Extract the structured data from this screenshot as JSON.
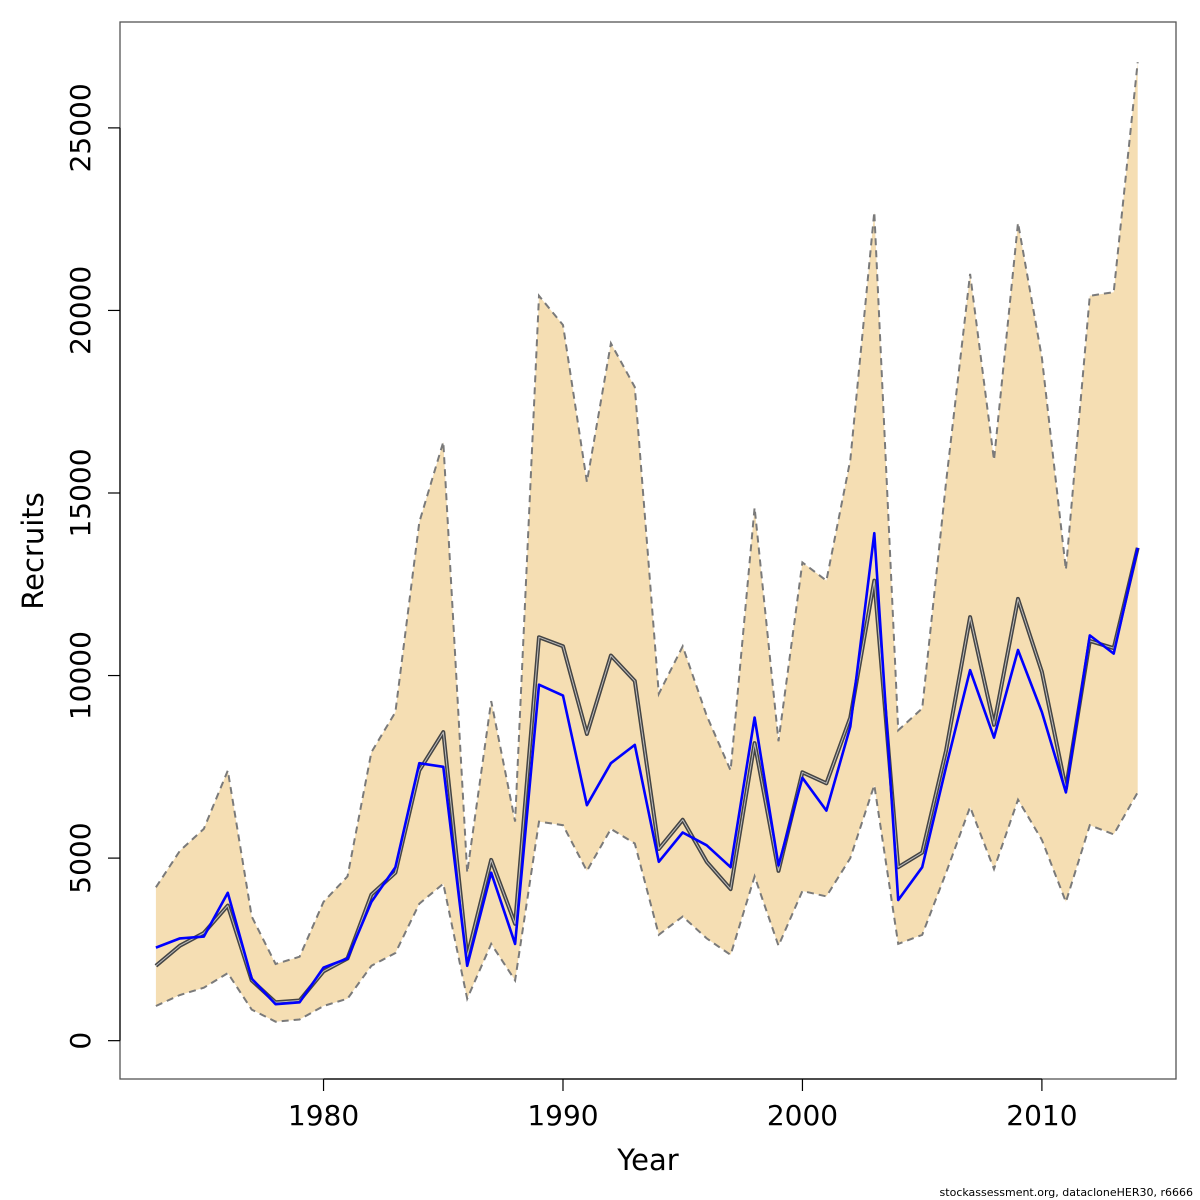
{
  "chart_data": {
    "type": "line",
    "xlabel": "Year",
    "ylabel": "Recruits",
    "xlim": [
      1971.5,
      2015.6
    ],
    "ylim": [
      -1050,
      27900
    ],
    "x_ticks": [
      1980,
      1990,
      2000,
      2010
    ],
    "y_ticks": [
      0,
      5000,
      10000,
      15000,
      20000,
      25000
    ],
    "grid": false,
    "legend": "none",
    "colors": {
      "band": "#f5deb3",
      "bound_line": "#7a7a7a",
      "estimate_line": "#444444",
      "second_line": "#0000ff"
    },
    "x": [
      1973,
      1974,
      1975,
      1976,
      1977,
      1978,
      1979,
      1980,
      1981,
      1982,
      1983,
      1984,
      1985,
      1986,
      1987,
      1988,
      1989,
      1990,
      1991,
      1992,
      1993,
      1994,
      1995,
      1996,
      1997,
      1998,
      1999,
      2000,
      2001,
      2002,
      2003,
      2004,
      2005,
      2006,
      2007,
      2008,
      2009,
      2010,
      2011,
      2012,
      2013,
      2014
    ],
    "series": [
      {
        "role": "upper_bound",
        "values": [
          4200,
          5200,
          5800,
          7400,
          3400,
          2100,
          2300,
          3800,
          4500,
          7900,
          9000,
          14200,
          16400,
          4600,
          9300,
          6000,
          20400,
          19600,
          15300,
          19100,
          17900,
          9500,
          10800,
          8900,
          7400,
          14600,
          8200,
          13100,
          12600,
          15900,
          22700,
          8500,
          9100,
          15300,
          21000,
          15900,
          22400,
          18700,
          12900,
          20400,
          20500,
          26800
        ]
      },
      {
        "role": "lower_bound",
        "values": [
          950,
          1250,
          1450,
          1850,
          850,
          520,
          580,
          950,
          1150,
          2050,
          2400,
          3750,
          4300,
          1150,
          2650,
          1650,
          6000,
          5900,
          4650,
          5800,
          5400,
          2900,
          3400,
          2800,
          2350,
          4500,
          2600,
          4100,
          3950,
          5000,
          7000,
          2650,
          2900,
          4600,
          6400,
          4700,
          6600,
          5500,
          3800,
          5900,
          5650,
          6800
        ]
      },
      {
        "role": "estimate",
        "values": [
          2050,
          2600,
          2950,
          3700,
          1650,
          1050,
          1100,
          1900,
          2250,
          4000,
          4600,
          7400,
          8450,
          2300,
          4950,
          3200,
          11050,
          10800,
          8400,
          10550,
          9850,
          5250,
          6050,
          4900,
          4150,
          8150,
          4650,
          7350,
          7050,
          8850,
          12600,
          4750,
          5150,
          7950,
          11600,
          8650,
          12100,
          10100,
          6900,
          10950,
          10750,
          13500
        ]
      },
      {
        "role": "second_estimate",
        "values": [
          2550,
          2800,
          2850,
          4050,
          1700,
          1000,
          1050,
          2000,
          2250,
          3800,
          4750,
          7600,
          7500,
          2050,
          4600,
          2650,
          9750,
          9450,
          6450,
          7600,
          8100,
          4900,
          5700,
          5350,
          4750,
          8850,
          4800,
          7200,
          6300,
          8600,
          13900,
          3850,
          4750,
          7500,
          10150,
          8300,
          10700,
          9000,
          6800,
          11100,
          10600,
          13500
        ]
      }
    ]
  },
  "footer": {
    "credit": "stockassessment.org, datacloneHER30, r6666"
  }
}
